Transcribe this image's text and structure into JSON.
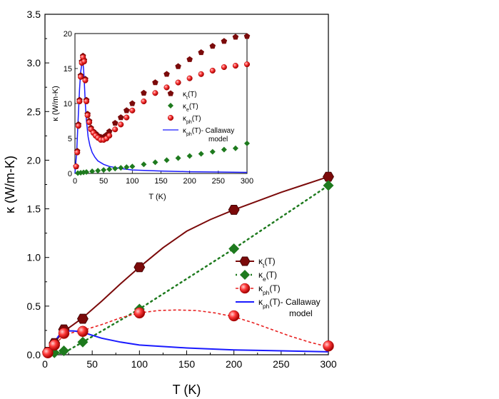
{
  "chart_data": [
    {
      "type": "line",
      "name": "main",
      "xlabel": "T (K)",
      "ylabel": "κ (W/m-K)",
      "xlim": [
        0,
        300
      ],
      "ylim": [
        0,
        3.5
      ],
      "xticks": [
        0,
        50,
        100,
        150,
        200,
        250,
        300
      ],
      "yticks": [
        0.0,
        0.5,
        1.0,
        1.5,
        2.0,
        2.5,
        3.0,
        3.5
      ],
      "ytick_labels": [
        "0.0",
        "0.5",
        "1.0",
        "1.5",
        "2.0",
        "2.5",
        "3.0",
        "3.5"
      ],
      "legend": [
        {
          "base": "κ",
          "sub": "t",
          "suffix": "(T)"
        },
        {
          "base": "κ",
          "sub": "e",
          "suffix": "(T)"
        },
        {
          "base": "κ",
          "sub": "ph",
          "suffix": "(T)"
        },
        {
          "base": "κ",
          "sub": "ph",
          "suffix": "(T)- Callaway",
          "line2": "model"
        }
      ],
      "series": [
        {
          "key": "kt",
          "marker": "hexagon",
          "color": "#7b0a0a",
          "x": [
            3,
            10,
            20,
            40,
            100,
            200,
            300
          ],
          "y": [
            0.03,
            0.12,
            0.26,
            0.37,
            0.9,
            1.49,
            1.83
          ],
          "fit_x": [
            0,
            3,
            10,
            20,
            30,
            40,
            60,
            80,
            100,
            125,
            150,
            175,
            200,
            225,
            250,
            275,
            300
          ],
          "fit_y": [
            0,
            0.03,
            0.13,
            0.24,
            0.31,
            0.38,
            0.55,
            0.73,
            0.9,
            1.1,
            1.27,
            1.39,
            1.49,
            1.58,
            1.67,
            1.75,
            1.83
          ]
        },
        {
          "key": "ke",
          "marker": "diamond",
          "color": "#1e7a1e",
          "x": [
            10,
            20,
            40,
            100,
            200,
            300
          ],
          "y": [
            0.02,
            0.04,
            0.13,
            0.47,
            1.09,
            1.74
          ],
          "fit_x": [
            0,
            20,
            40,
            100,
            200,
            300
          ],
          "fit_y": [
            0,
            0.02,
            0.13,
            0.47,
            1.09,
            1.74
          ]
        },
        {
          "key": "kph",
          "marker": "sphere",
          "color": "#e82020",
          "x": [
            3,
            10,
            20,
            40,
            100,
            200,
            300
          ],
          "y": [
            0.02,
            0.1,
            0.22,
            0.24,
            0.43,
            0.4,
            0.09
          ],
          "fit_x": [
            0,
            10,
            20,
            30,
            40,
            60,
            80,
            100,
            120,
            140,
            160,
            180,
            200,
            220,
            240,
            260,
            280,
            300
          ],
          "fit_y": [
            0,
            0.1,
            0.2,
            0.23,
            0.25,
            0.31,
            0.38,
            0.43,
            0.455,
            0.46,
            0.455,
            0.43,
            0.39,
            0.33,
            0.26,
            0.19,
            0.13,
            0.08
          ]
        },
        {
          "key": "callaway",
          "marker": "none",
          "color": "#1a1aff",
          "fit_x": [
            0,
            5,
            10,
            15,
            20,
            25,
            30,
            35,
            40,
            50,
            60,
            80,
            100,
            150,
            200,
            250,
            300
          ],
          "fit_y": [
            0,
            0.04,
            0.13,
            0.2,
            0.235,
            0.245,
            0.245,
            0.24,
            0.23,
            0.2,
            0.17,
            0.13,
            0.1,
            0.07,
            0.05,
            0.04,
            0.03
          ]
        }
      ]
    },
    {
      "type": "scatter",
      "name": "inset",
      "xlabel": "T (K)",
      "ylabel": "κ (W/m-K)",
      "xlim": [
        0,
        300
      ],
      "ylim": [
        0,
        20
      ],
      "xticks": [
        0,
        50,
        100,
        150,
        200,
        250,
        300
      ],
      "yticks": [
        0,
        5,
        10,
        15,
        20
      ],
      "legend": [
        {
          "base": "κ",
          "sub": "t",
          "suffix": "(T)"
        },
        {
          "base": "κ",
          "sub": "e",
          "suffix": "(T)"
        },
        {
          "base": "κ",
          "sub": "ph",
          "suffix": "(T)"
        },
        {
          "base": "κ",
          "sub": "ph",
          "suffix": "(T)- Callaway",
          "line2": "model"
        }
      ],
      "series": [
        {
          "key": "kt",
          "marker": "pentagon",
          "color": "#7b0a0a",
          "x": [
            2,
            4,
            6,
            8,
            10,
            12,
            14,
            16,
            18,
            20,
            22,
            25,
            28,
            32,
            36,
            40,
            45,
            50,
            55,
            60,
            70,
            80,
            90,
            100,
            120,
            140,
            160,
            180,
            200,
            220,
            240,
            260,
            280,
            300
          ],
          "y": [
            1.0,
            3.2,
            7.0,
            10.5,
            14.0,
            16.0,
            16.8,
            16.2,
            13.5,
            10.5,
            8.5,
            7.5,
            6.5,
            6.0,
            5.7,
            5.4,
            5.2,
            5.2,
            5.5,
            6.0,
            7.2,
            8.0,
            9.0,
            10.0,
            11.5,
            13.0,
            14.2,
            15.3,
            16.3,
            17.3,
            18.2,
            18.9,
            19.5,
            19.6
          ]
        },
        {
          "key": "ke",
          "marker": "diamond",
          "color": "#1e7a1e",
          "x": [
            5,
            10,
            15,
            20,
            30,
            40,
            50,
            60,
            70,
            80,
            90,
            100,
            120,
            140,
            160,
            180,
            200,
            220,
            240,
            260,
            280,
            300
          ],
          "y": [
            0.05,
            0.1,
            0.15,
            0.2,
            0.3,
            0.4,
            0.5,
            0.6,
            0.7,
            0.8,
            0.9,
            1.0,
            1.3,
            1.6,
            1.9,
            2.2,
            2.5,
            2.8,
            3.1,
            3.4,
            3.6,
            4.3
          ]
        },
        {
          "key": "kph",
          "marker": "sphere",
          "color": "#e82020",
          "x": [
            2,
            4,
            6,
            8,
            10,
            12,
            14,
            16,
            18,
            20,
            22,
            25,
            28,
            32,
            36,
            40,
            45,
            50,
            55,
            60,
            70,
            80,
            90,
            100,
            120,
            140,
            160,
            180,
            200,
            220,
            240,
            260,
            280,
            300
          ],
          "y": [
            1.0,
            3.0,
            6.8,
            10.3,
            13.8,
            15.8,
            16.6,
            16.0,
            13.3,
            10.3,
            8.3,
            7.3,
            6.3,
            5.8,
            5.4,
            5.1,
            4.8,
            4.8,
            5.0,
            5.4,
            6.3,
            7.0,
            8.0,
            9.0,
            10.3,
            11.5,
            12.3,
            13.0,
            13.6,
            14.2,
            14.7,
            15.2,
            15.4,
            15.6
          ]
        },
        {
          "key": "callaway",
          "marker": "none",
          "color": "#1a1aff",
          "fit_x": [
            0,
            3,
            6,
            8,
            10,
            12,
            13,
            14,
            15,
            16,
            18,
            20,
            23,
            26,
            30,
            35,
            40,
            50,
            60,
            80,
            100,
            150,
            200,
            250,
            300
          ],
          "fit_y": [
            0,
            3.0,
            8.5,
            12.0,
            14.5,
            15.6,
            16.0,
            15.8,
            15.0,
            13.5,
            10.0,
            7.5,
            5.2,
            4.0,
            3.0,
            2.3,
            1.8,
            1.3,
            1.0,
            0.7,
            0.5,
            0.35,
            0.25,
            0.2,
            0.15
          ]
        }
      ]
    }
  ]
}
